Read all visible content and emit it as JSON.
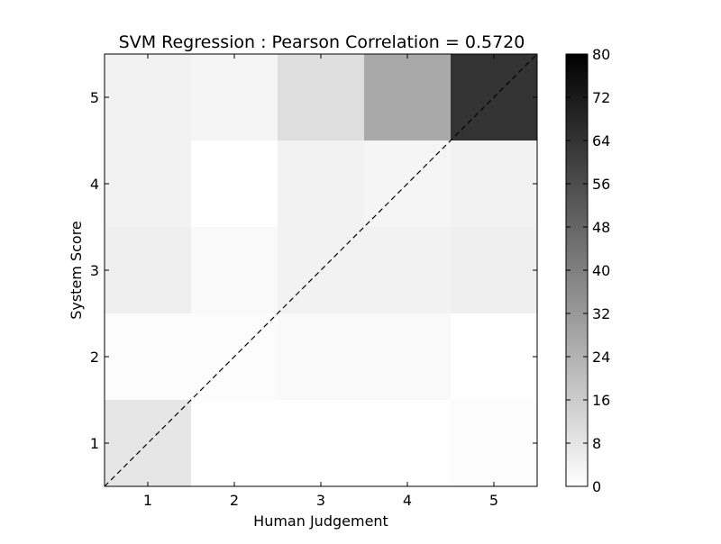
{
  "chart_data": {
    "type": "heatmap",
    "title": "SVM Regression : Pearson Correlation = 0.5720",
    "xlabel": "Human Judgement",
    "ylabel": "System Score",
    "x_categories": [
      "1",
      "2",
      "3",
      "4",
      "5"
    ],
    "y_categories": [
      "1",
      "2",
      "3",
      "4",
      "5"
    ],
    "values_by_row": [
      {
        "system_score": "1",
        "values": [
          8,
          0,
          0,
          0,
          1
        ]
      },
      {
        "system_score": "2",
        "values": [
          1,
          1,
          2,
          2,
          0
        ]
      },
      {
        "system_score": "3",
        "values": [
          5,
          2,
          4,
          4,
          5
        ]
      },
      {
        "system_score": "4",
        "values": [
          4,
          0,
          4,
          3,
          4
        ]
      },
      {
        "system_score": "5",
        "values": [
          4,
          3,
          10,
          27,
          64
        ]
      }
    ],
    "colormap": "gray_r",
    "color_range": [
      0,
      80
    ],
    "colorbar_ticks": [
      "0",
      "8",
      "16",
      "24",
      "32",
      "40",
      "48",
      "56",
      "64",
      "72",
      "80"
    ],
    "reference_line": "dashed diagonal y = x"
  }
}
